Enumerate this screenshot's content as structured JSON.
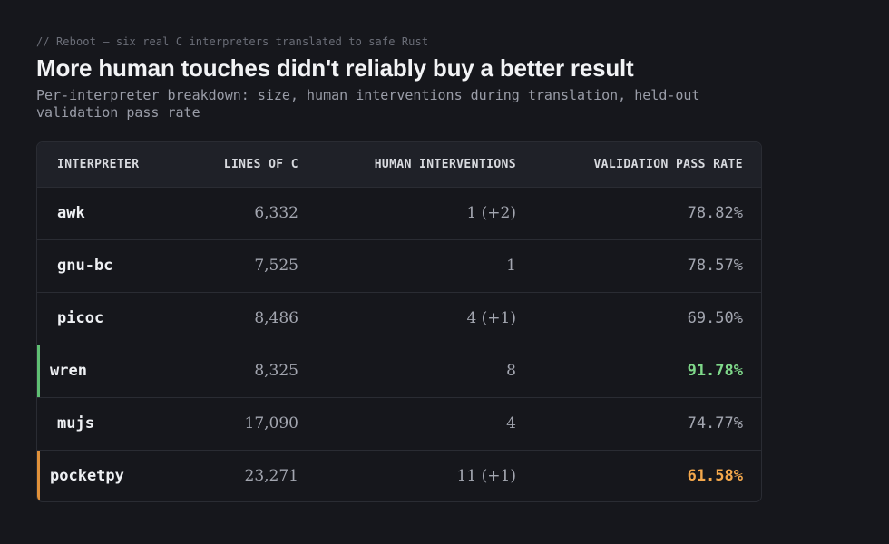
{
  "header": {
    "eyebrow": "// Reboot — six real C interpreters translated to safe Rust",
    "title": "More human touches didn't reliably buy a better result",
    "subtitle": "Per-interpreter breakdown: size, human interventions during translation, held-out validation pass rate"
  },
  "table": {
    "columns": [
      "INTERPRETER",
      "LINES OF C",
      "HUMAN INTERVENTIONS",
      "VALIDATION PASS RATE"
    ],
    "rows": [
      {
        "name": "awk",
        "lines": "6,332",
        "interventions": "1 (+2)",
        "rate": "78.82%",
        "highlight": "none"
      },
      {
        "name": "gnu-bc",
        "lines": "7,525",
        "interventions": "1",
        "rate": "78.57%",
        "highlight": "none"
      },
      {
        "name": "picoc",
        "lines": "8,486",
        "interventions": "4 (+1)",
        "rate": "69.50%",
        "highlight": "none"
      },
      {
        "name": "wren",
        "lines": "8,325",
        "interventions": "8",
        "rate": "91.78%",
        "highlight": "best"
      },
      {
        "name": "mujs",
        "lines": "17,090",
        "interventions": "4",
        "rate": "74.77%",
        "highlight": "none"
      },
      {
        "name": "pocketpy",
        "lines": "23,271",
        "interventions": "11 (+1)",
        "rate": "61.58%",
        "highlight": "worst"
      }
    ]
  },
  "colors": {
    "best": "#7fd88a",
    "worst": "#f4a84c",
    "best_bar": "#5fbf73",
    "worst_bar": "#e0913a"
  }
}
